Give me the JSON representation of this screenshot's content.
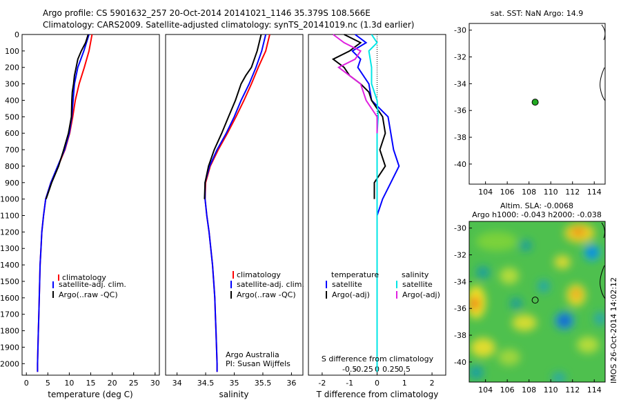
{
  "header": {
    "line1": "Argo profile: CS 5901632_257 20-Oct-2014 20141021_1146 35.379S 108.566E",
    "line2": "Climatology: CARS2009. Satellite-adjusted climatology: synTS_20141019.nc (1.3d earlier)"
  },
  "colors": {
    "climatology": "#ff0000",
    "satellite": "#0000ff",
    "argo": "#000000",
    "sal_satellite": "#00e5e5",
    "sal_argo": "#e020e0",
    "marker": "#22aa22"
  },
  "depth_ticks": [
    0,
    100,
    200,
    300,
    400,
    500,
    600,
    700,
    800,
    900,
    1000,
    1100,
    1200,
    1300,
    1400,
    1500,
    1600,
    1700,
    1800,
    1900,
    2000
  ],
  "chart_data": [
    {
      "type": "line",
      "id": "temperature",
      "xlabel": "temperature (deg C)",
      "xlim": [
        -1,
        31
      ],
      "ylim": [
        2070,
        0
      ],
      "xticks": [
        0,
        5,
        10,
        15,
        20,
        25,
        30
      ],
      "legend": [
        "climatology",
        "satellite-adj. clim.",
        "Argo(..raw -QC)"
      ],
      "series": [
        {
          "name": "climatology",
          "color_key": "climatology",
          "depth": [
            0,
            100,
            200,
            300,
            400,
            500,
            600,
            700,
            800,
            900,
            1000,
            1100,
            1200,
            1300,
            1400,
            1500,
            1600,
            1700,
            1800,
            1900,
            2000,
            2050
          ],
          "values": [
            15.3,
            14.6,
            13.5,
            12.3,
            11.4,
            10.8,
            10.1,
            9.0,
            7.4,
            5.7,
            4.5,
            4.0,
            3.6,
            3.4,
            3.2,
            3.1,
            3.0,
            2.9,
            2.8,
            2.7,
            2.6,
            2.6
          ]
        },
        {
          "name": "satellite-adj. clim.",
          "color_key": "satellite",
          "depth": [
            0,
            100,
            200,
            300,
            400,
            500,
            600,
            700,
            800,
            900,
            1000,
            1100,
            1200,
            1300,
            1400,
            1500,
            1600,
            1700,
            1800,
            1900,
            2000,
            2050
          ],
          "values": [
            14.6,
            13.4,
            12.0,
            11.2,
            10.9,
            10.6,
            10.0,
            8.9,
            7.3,
            5.7,
            4.5,
            4.0,
            3.6,
            3.4,
            3.2,
            3.1,
            3.0,
            2.9,
            2.8,
            2.7,
            2.6,
            2.6
          ]
        },
        {
          "name": "Argo(..raw -QC)",
          "color_key": "argo",
          "depth": [
            0,
            50,
            100,
            150,
            200,
            250,
            300,
            350,
            400,
            500,
            600,
            700,
            800,
            900,
            1000
          ],
          "values": [
            14.4,
            13.8,
            12.8,
            12.0,
            11.6,
            11.2,
            11.0,
            10.7,
            10.6,
            10.5,
            9.8,
            8.7,
            7.5,
            5.9,
            4.6
          ]
        }
      ]
    },
    {
      "type": "line",
      "id": "salinity",
      "xlabel": "salinity",
      "xlim": [
        33.8,
        36.2
      ],
      "ylim": [
        2070,
        0
      ],
      "xticks": [
        34,
        34.5,
        35,
        35.5,
        36
      ],
      "xticklabels": [
        "34",
        "34.5",
        "35",
        "35.5",
        "36"
      ],
      "legend": [
        "climatology",
        "satellite-adj. clim.",
        "Argo(..raw -QC)"
      ],
      "annotation": [
        "Argo Australia",
        "PI: Susan Wijffels"
      ],
      "series": [
        {
          "name": "climatology",
          "color_key": "climatology",
          "depth": [
            0,
            100,
            200,
            300,
            400,
            500,
            600,
            700,
            800,
            900,
            1000,
            1100,
            1200,
            1300,
            1400,
            1500,
            1600,
            1700,
            1800,
            1900,
            2000,
            2050
          ],
          "values": [
            35.62,
            35.55,
            35.42,
            35.3,
            35.17,
            35.03,
            34.88,
            34.72,
            34.58,
            34.5,
            34.49,
            34.52,
            34.56,
            34.59,
            34.62,
            34.64,
            34.66,
            34.67,
            34.68,
            34.69,
            34.7,
            34.7
          ]
        },
        {
          "name": "satellite-adj. clim.",
          "color_key": "satellite",
          "depth": [
            0,
            100,
            200,
            300,
            400,
            500,
            600,
            700,
            800,
            900,
            1000,
            1100,
            1200,
            1300,
            1400,
            1500,
            1600,
            1700,
            1800,
            1900,
            2000,
            2050
          ],
          "values": [
            35.55,
            35.48,
            35.38,
            35.26,
            35.12,
            35.0,
            34.86,
            34.7,
            34.57,
            34.49,
            34.49,
            34.52,
            34.56,
            34.59,
            34.62,
            34.64,
            34.66,
            34.67,
            34.68,
            34.69,
            34.7,
            34.7
          ]
        },
        {
          "name": "Argo(..raw -QC)",
          "color_key": "argo",
          "depth": [
            0,
            100,
            200,
            250,
            300,
            400,
            500,
            600,
            700,
            800,
            900,
            1000
          ],
          "values": [
            35.47,
            35.4,
            35.3,
            35.2,
            35.12,
            35.02,
            34.9,
            34.78,
            34.65,
            34.55,
            34.49,
            34.48
          ]
        }
      ]
    },
    {
      "type": "line",
      "id": "differences",
      "xlabel": "T difference from climatology",
      "xlabel2": "S difference from climatology",
      "xlim": [
        -2.5,
        2.5
      ],
      "ylim": [
        2070,
        0
      ],
      "xticks": [
        -2,
        -1,
        0,
        1,
        2
      ],
      "sticks": [
        -0.5,
        -0.25,
        0,
        0.25,
        0.5
      ],
      "sticklabels": [
        "-0.5",
        "-0.25",
        "0",
        "0.25",
        "0.5"
      ],
      "legend_temperature": [
        "temperature",
        "satellite",
        "Argo(-adj)"
      ],
      "legend_salinity": [
        "salinity",
        "satellite",
        "Argo(-adj)"
      ],
      "series": [
        {
          "name": "satellite",
          "group": "temperature",
          "color_key": "satellite",
          "depth": [
            0,
            50,
            100,
            150,
            200,
            300,
            400,
            500,
            600,
            700,
            800,
            900,
            1000,
            1100
          ],
          "values": [
            -0.8,
            -0.4,
            -0.9,
            -0.6,
            -0.7,
            -0.3,
            -0.2,
            0.4,
            0.5,
            0.6,
            0.8,
            0.5,
            0.2,
            0.0
          ]
        },
        {
          "name": "Argo(-adj)",
          "group": "temperature",
          "color_key": "argo",
          "depth": [
            0,
            50,
            100,
            150,
            200,
            250,
            300,
            350,
            400,
            500,
            600,
            700,
            800,
            900,
            1000
          ],
          "values": [
            -1.2,
            -0.6,
            -1.0,
            -1.6,
            -1.2,
            -1.0,
            -0.6,
            -0.3,
            -0.2,
            0.2,
            0.3,
            0.1,
            0.3,
            -0.1,
            -0.1
          ]
        },
        {
          "name": "satellite",
          "group": "salinity",
          "color_key": "sal_satellite",
          "depth": [
            0,
            50,
            100,
            200,
            300,
            400,
            500,
            600,
            800,
            1000,
            1500,
            2000,
            2050
          ],
          "values": [
            -0.1,
            0.0,
            -0.15,
            -0.1,
            -0.1,
            0.0,
            0.02,
            0.0,
            0.0,
            0.0,
            0.0,
            0.0,
            0.0
          ]
        },
        {
          "name": "Argo(-adj)",
          "group": "salinity",
          "color_key": "sal_argo",
          "depth": [
            0,
            50,
            100,
            150,
            200,
            250,
            300,
            400,
            500,
            600
          ],
          "values": [
            -0.8,
            -0.6,
            -0.3,
            -0.4,
            -0.7,
            -0.5,
            -0.3,
            -0.2,
            0.0,
            0.0
          ]
        }
      ]
    },
    {
      "type": "scatter",
      "id": "sst_map",
      "title": "sat. SST: NaN Argo: 14.9",
      "xlim": [
        102.5,
        115
      ],
      "ylim": [
        -41.5,
        -29.5
      ],
      "xticks": [
        104,
        106,
        108,
        110,
        112,
        114
      ],
      "yticks": [
        -30,
        -32,
        -34,
        -36,
        -38,
        -40
      ],
      "point": {
        "lon": 108.566,
        "lat": -35.379
      }
    },
    {
      "type": "heatmap",
      "id": "sla_map",
      "title_line1": "Altim. SLA: -0.0068",
      "title_line2": "Argo h1000: -0.043 h2000: -0.038",
      "side_label": "IMOS 26-Oct-2014 14:02:12",
      "xlim": [
        102.5,
        115
      ],
      "ylim": [
        -41.5,
        -29.5
      ],
      "xticks": [
        104,
        106,
        108,
        110,
        112,
        114
      ],
      "yticks": [
        -30,
        -32,
        -34,
        -36,
        -38,
        -40
      ],
      "point": {
        "lon": 108.566,
        "lat": -35.379
      }
    }
  ]
}
